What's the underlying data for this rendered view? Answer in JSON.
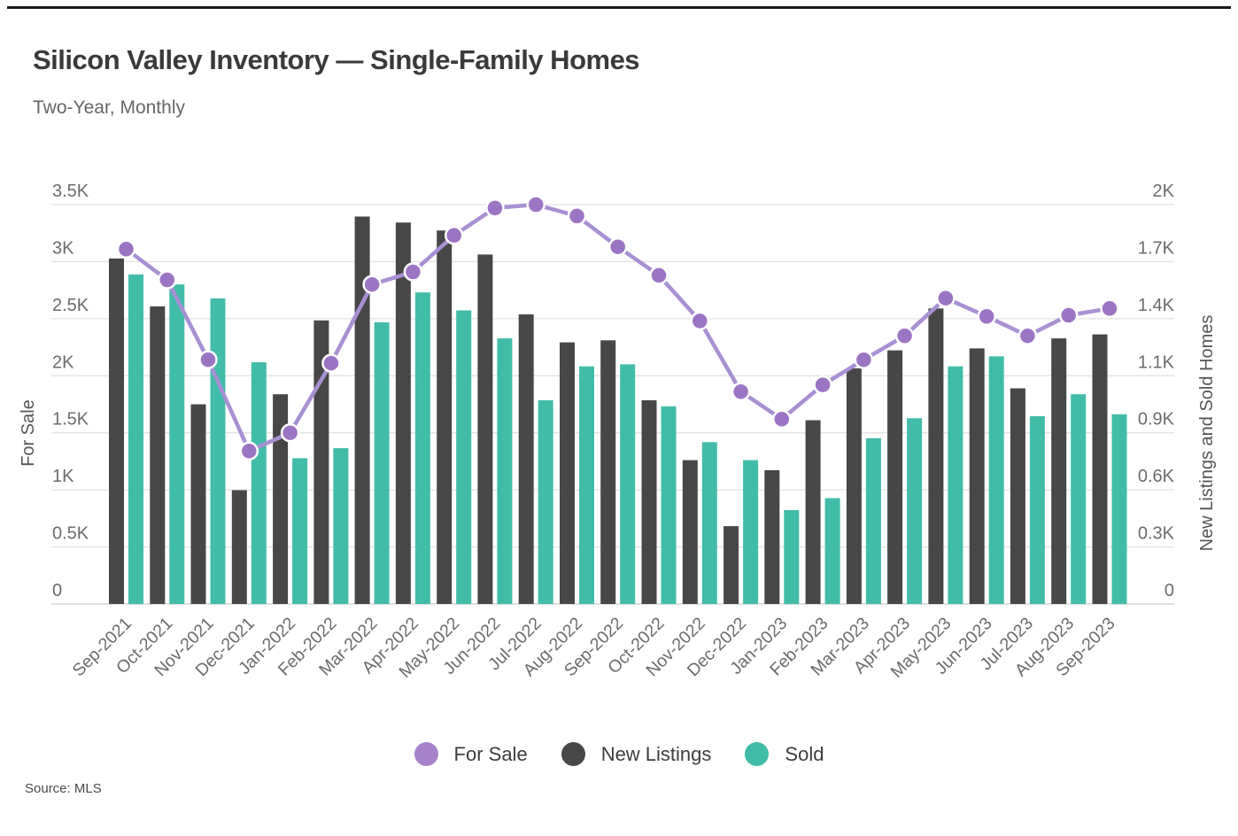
{
  "page": {
    "title": "Silicon Valley Inventory — Single-Family Homes",
    "subtitle": "Two-Year, Monthly",
    "source": "Source: MLS"
  },
  "axes": {
    "left_title": "For Sale",
    "right_title": "New Listings and Sold Homes",
    "left_ticks": [
      "0",
      "0.5K",
      "1K",
      "1.5K",
      "2K",
      "2.5K",
      "3K",
      "3.5K"
    ],
    "right_ticks": [
      "0",
      "0.3K",
      "0.6K",
      "0.9K",
      "1.1K",
      "1.4K",
      "1.7K",
      "2K"
    ]
  },
  "legend": [
    {
      "label": "For Sale",
      "color": "#a782cb",
      "series": "for-sale"
    },
    {
      "label": "New Listings",
      "color": "#474747",
      "series": "new-listings"
    },
    {
      "label": "Sold",
      "color": "#41bca8",
      "series": "sold"
    }
  ],
  "colors": {
    "for_sale_line": "#a890d4",
    "for_sale_marker": "#9c74c4",
    "marker_ring": "#ffffff",
    "new_listings_bar": "#474747",
    "sold_bar": "#41bca8",
    "gridline": "#e3e3e3",
    "baseline": "#cdcdcd",
    "tick_text": "#6b6b6b",
    "axis_title_text": "#555555"
  },
  "chart_data": {
    "type": "bar",
    "subtype": "grouped-bars-with-line-overlay",
    "title": "Silicon Valley Inventory — Single-Family Homes",
    "subtitle": "Two-Year, Monthly",
    "grid": true,
    "legend_position": "bottom-center",
    "categories": [
      "Sep-2021",
      "Oct-2021",
      "Nov-2021",
      "Dec-2021",
      "Jan-2022",
      "Feb-2022",
      "Mar-2022",
      "Apr-2022",
      "May-2022",
      "Jun-2022",
      "Jul-2022",
      "Aug-2022",
      "Sep-2022",
      "Oct-2022",
      "Nov-2022",
      "Dec-2022",
      "Jan-2023",
      "Feb-2023",
      "Mar-2023",
      "Apr-2023",
      "May-2023",
      "Jun-2023",
      "Jul-2023",
      "Aug-2023",
      "Sep-2023"
    ],
    "series": [
      {
        "name": "For Sale",
        "type": "line",
        "axis": "left",
        "values": [
          3110,
          2840,
          2140,
          1340,
          1500,
          2110,
          2800,
          2910,
          3230,
          3470,
          3500,
          3400,
          3130,
          2880,
          2480,
          1860,
          1620,
          1920,
          2140,
          2350,
          2680,
          2520,
          2350,
          2530,
          2590
        ]
      },
      {
        "name": "New Listings",
        "type": "bar",
        "axis": "right",
        "values": [
          1730,
          1490,
          1000,
          570,
          1050,
          1420,
          1940,
          1910,
          1870,
          1750,
          1450,
          1310,
          1320,
          1020,
          720,
          390,
          670,
          920,
          1180,
          1270,
          1480,
          1280,
          1080,
          1330,
          1350
        ]
      },
      {
        "name": "Sold",
        "type": "bar",
        "axis": "right",
        "values": [
          1650,
          1600,
          1530,
          1210,
          730,
          780,
          1410,
          1560,
          1470,
          1330,
          1020,
          1190,
          1200,
          990,
          810,
          720,
          470,
          530,
          830,
          930,
          1190,
          1240,
          940,
          1050,
          950
        ]
      }
    ],
    "left_axis": {
      "label": "For Sale",
      "range": [
        0,
        3500
      ],
      "tick_values": [
        0,
        500,
        1000,
        1500,
        2000,
        2500,
        3000,
        3500
      ]
    },
    "right_axis": {
      "label": "New Listings and Sold Homes",
      "range": [
        0,
        2000
      ],
      "tick_labels": [
        "0",
        "0.3K",
        "0.6K",
        "0.9K",
        "1.1K",
        "1.4K",
        "1.7K",
        "2K"
      ]
    },
    "x_axis": {
      "label_rotation": -45
    },
    "source": "Source: MLS"
  }
}
